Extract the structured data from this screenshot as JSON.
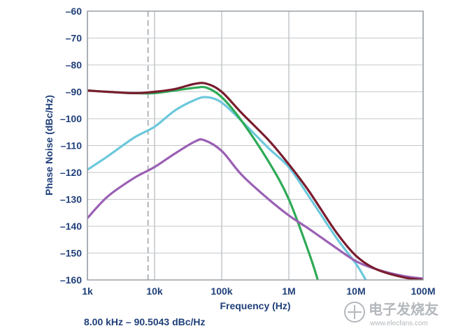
{
  "chart_data": {
    "type": "line",
    "title": "",
    "xlabel": "Frequency (Hz)",
    "ylabel": "Phase Noise (dBc/Hz)",
    "xscale": "log",
    "xlim": [
      1000,
      100000000
    ],
    "ylim": [
      -160,
      -60
    ],
    "grid": true,
    "legend": "none",
    "x_ticks": [
      {
        "value": 1000,
        "label": "1k"
      },
      {
        "value": 10000,
        "label": "10k"
      },
      {
        "value": 100000,
        "label": "100k"
      },
      {
        "value": 1000000,
        "label": "1M"
      },
      {
        "value": 10000000,
        "label": "10M"
      },
      {
        "value": 100000000,
        "label": "100M"
      }
    ],
    "y_ticks": [
      {
        "value": -60,
        "label": "–60"
      },
      {
        "value": -70,
        "label": "–70"
      },
      {
        "value": -80,
        "label": "–80"
      },
      {
        "value": -90,
        "label": "–90"
      },
      {
        "value": -100,
        "label": "–100"
      },
      {
        "value": -110,
        "label": "–110"
      },
      {
        "value": -120,
        "label": "–120"
      },
      {
        "value": -130,
        "label": "–130"
      },
      {
        "value": -140,
        "label": "–140"
      },
      {
        "value": -150,
        "label": "–150"
      },
      {
        "value": -160,
        "label": "–160"
      }
    ],
    "marker": {
      "x": 8000,
      "y": -90.5043,
      "readout": "8.00 kHz – 90.5043 dBc/Hz"
    },
    "series": [
      {
        "color": "#6cc8dc",
        "points": [
          [
            1000,
            -119
          ],
          [
            2000,
            -114
          ],
          [
            5000,
            -107
          ],
          [
            10000,
            -103
          ],
          [
            20000,
            -97
          ],
          [
            40000,
            -93
          ],
          [
            60000,
            -92
          ],
          [
            100000,
            -94
          ],
          [
            200000,
            -101
          ],
          [
            500000,
            -111
          ],
          [
            1000000,
            -118
          ],
          [
            2000000,
            -129
          ],
          [
            5000000,
            -144
          ],
          [
            10000000,
            -154
          ],
          [
            14000000,
            -160
          ]
        ]
      },
      {
        "color": "#2eaa55",
        "points": [
          [
            1000,
            -89.5
          ],
          [
            2000,
            -90
          ],
          [
            5000,
            -90.5
          ],
          [
            10000,
            -90.5
          ],
          [
            20000,
            -89.5
          ],
          [
            40000,
            -88.5
          ],
          [
            60000,
            -88.5
          ],
          [
            100000,
            -92
          ],
          [
            200000,
            -101
          ],
          [
            500000,
            -116
          ],
          [
            1000000,
            -130
          ],
          [
            2000000,
            -150
          ],
          [
            2700000,
            -160
          ]
        ]
      },
      {
        "color": "#9a60b4",
        "points": [
          [
            1000,
            -137
          ],
          [
            2000,
            -129
          ],
          [
            5000,
            -122
          ],
          [
            10000,
            -118
          ],
          [
            20000,
            -113
          ],
          [
            40000,
            -108.5
          ],
          [
            55000,
            -108
          ],
          [
            100000,
            -112
          ],
          [
            200000,
            -121
          ],
          [
            500000,
            -130
          ],
          [
            1000000,
            -136
          ],
          [
            2000000,
            -141
          ],
          [
            5000000,
            -148
          ],
          [
            10000000,
            -153
          ],
          [
            20000000,
            -156
          ],
          [
            50000000,
            -158.5
          ],
          [
            100000000,
            -159.5
          ]
        ]
      },
      {
        "color": "#7a1d2e",
        "points": [
          [
            1000,
            -89.5
          ],
          [
            2000,
            -90
          ],
          [
            5000,
            -90.5
          ],
          [
            10000,
            -90
          ],
          [
            20000,
            -89
          ],
          [
            40000,
            -87
          ],
          [
            60000,
            -87
          ],
          [
            100000,
            -90
          ],
          [
            200000,
            -98
          ],
          [
            500000,
            -108
          ],
          [
            1000000,
            -117
          ],
          [
            2000000,
            -127
          ],
          [
            5000000,
            -142
          ],
          [
            10000000,
            -151
          ],
          [
            20000000,
            -156
          ],
          [
            50000000,
            -159
          ],
          [
            100000000,
            -160
          ]
        ]
      }
    ]
  },
  "watermark": {
    "text_cn": "电子发烧友",
    "url": "www.elecfans.com"
  }
}
